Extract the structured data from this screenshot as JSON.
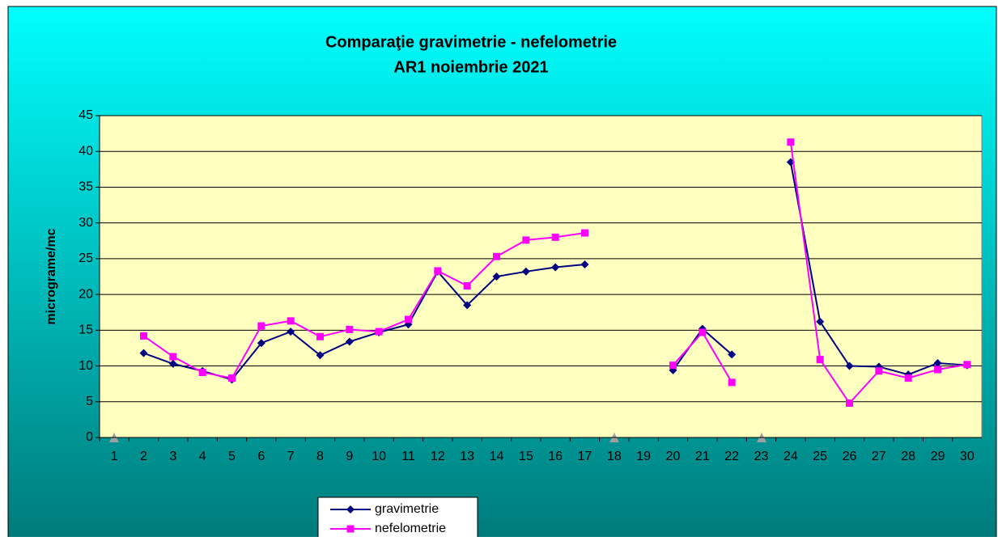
{
  "chart_data": {
    "type": "line",
    "title": "Comparaţie gravimetrie - nefelometrie",
    "subtitle": "AR1   noiembrie 2021",
    "y_label": "micrograme/mc",
    "categories": [
      "1",
      "2",
      "3",
      "4",
      "5",
      "6",
      "7",
      "8",
      "9",
      "10",
      "11",
      "12",
      "13",
      "14",
      "15",
      "16",
      "17",
      "18",
      "19",
      "20",
      "21",
      "22",
      "23",
      "24",
      "25",
      "26",
      "27",
      "28",
      "29",
      "30"
    ],
    "series": [
      {
        "name": "gravimetrie",
        "color": "#000080",
        "marker": "diamond",
        "values": [
          null,
          11.8,
          10.3,
          9.3,
          8.1,
          13.2,
          14.8,
          11.5,
          13.4,
          14.7,
          15.8,
          23.2,
          18.5,
          22.5,
          23.2,
          23.8,
          24.2,
          null,
          null,
          9.4,
          15.2,
          11.6,
          null,
          38.5,
          16.2,
          10.0,
          9.9,
          8.8,
          10.4,
          10.1
        ]
      },
      {
        "name": "nefelometrie",
        "color": "#ff00ff",
        "marker": "square",
        "values": [
          null,
          14.2,
          11.3,
          9.1,
          8.3,
          15.6,
          16.3,
          14.1,
          15.1,
          14.8,
          16.5,
          23.3,
          21.2,
          25.3,
          27.6,
          28.0,
          28.6,
          null,
          null,
          10.1,
          14.7,
          7.7,
          null,
          41.3,
          10.9,
          4.8,
          9.3,
          8.3,
          9.5,
          10.2
        ]
      }
    ],
    "ylim": [
      0,
      45
    ],
    "yticks": [
      0,
      5,
      10,
      15,
      20,
      25,
      30,
      35,
      40,
      45
    ],
    "grid": true
  }
}
